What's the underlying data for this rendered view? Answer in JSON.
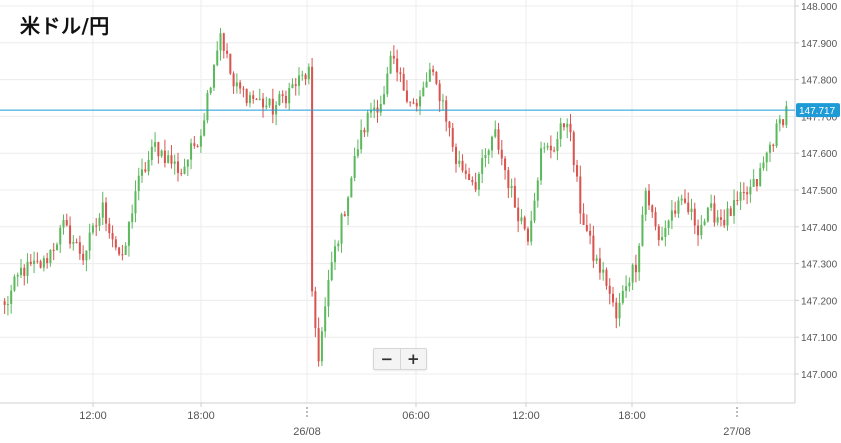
{
  "title": "米ドル/円",
  "zoom": {
    "minus_label": "−",
    "plus_label": "+"
  },
  "colors": {
    "up": "#5cb85c",
    "down": "#d9534f",
    "current_line": "#1e9bd7",
    "grid": "#ececec",
    "axis": "#cfcfcf",
    "text": "#555555"
  },
  "chart_data": {
    "type": "candlestick",
    "ylim": [
      146.925,
      148.0
    ],
    "yticks": [
      "148.000",
      "147.900",
      "147.800",
      "147.700",
      "147.600",
      "147.500",
      "147.400",
      "147.300",
      "147.200",
      "147.100",
      "147.000"
    ],
    "xticks": [
      {
        "label": "12:00",
        "major": false
      },
      {
        "label": "18:00",
        "major": false
      },
      {
        "label": "26/08",
        "major": true
      },
      {
        "label": "06:00",
        "major": false
      },
      {
        "label": "12:00",
        "major": false
      },
      {
        "label": "18:00",
        "major": false
      },
      {
        "label": "27/08",
        "major": true
      }
    ],
    "current_price": "147.717",
    "grid": true,
    "anchors": [
      [
        0,
        147.18
      ],
      [
        5,
        147.28
      ],
      [
        12,
        147.3
      ],
      [
        18,
        147.4
      ],
      [
        24,
        147.32
      ],
      [
        30,
        147.45
      ],
      [
        36,
        147.3
      ],
      [
        40,
        147.5
      ],
      [
        46,
        147.62
      ],
      [
        54,
        147.55
      ],
      [
        60,
        147.66
      ],
      [
        64,
        147.85
      ],
      [
        66,
        147.93
      ],
      [
        70,
        147.78
      ],
      [
        76,
        147.75
      ],
      [
        82,
        147.72
      ],
      [
        88,
        147.78
      ],
      [
        93,
        147.82
      ],
      [
        94,
        147.2
      ],
      [
        96,
        147.05
      ],
      [
        100,
        147.3
      ],
      [
        104,
        147.45
      ],
      [
        108,
        147.62
      ],
      [
        112,
        147.72
      ],
      [
        116,
        147.75
      ],
      [
        118,
        147.85
      ],
      [
        122,
        147.78
      ],
      [
        126,
        147.72
      ],
      [
        130,
        147.82
      ],
      [
        134,
        147.74
      ],
      [
        138,
        147.58
      ],
      [
        144,
        147.52
      ],
      [
        150,
        147.65
      ],
      [
        156,
        147.46
      ],
      [
        160,
        147.38
      ],
      [
        164,
        147.6
      ],
      [
        168,
        147.62
      ],
      [
        172,
        147.7
      ],
      [
        176,
        147.45
      ],
      [
        180,
        147.32
      ],
      [
        184,
        147.25
      ],
      [
        187,
        147.15
      ],
      [
        190,
        147.25
      ],
      [
        193,
        147.3
      ],
      [
        196,
        147.5
      ],
      [
        200,
        147.36
      ],
      [
        204,
        147.44
      ],
      [
        208,
        147.46
      ],
      [
        212,
        147.4
      ],
      [
        216,
        147.44
      ],
      [
        220,
        147.42
      ],
      [
        226,
        147.48
      ],
      [
        230,
        147.52
      ],
      [
        234,
        147.62
      ],
      [
        237,
        147.68
      ],
      [
        239,
        147.72
      ]
    ]
  }
}
